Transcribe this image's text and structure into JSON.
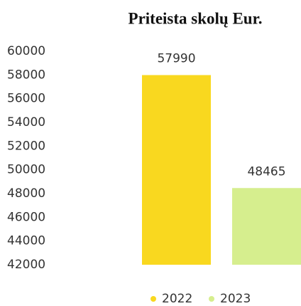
{
  "chart_data": {
    "type": "bar",
    "title": "Priteista skolų Eur.",
    "categories": [
      null
    ],
    "series": [
      {
        "name": "2022",
        "color": "#f9d81f",
        "values": [
          57990
        ]
      },
      {
        "name": "2023",
        "color": "#d6ee8e",
        "values": [
          48465
        ]
      }
    ],
    "ylim": [
      42000,
      60000
    ],
    "yticks": [
      42000,
      44000,
      46000,
      48000,
      50000,
      52000,
      54000,
      56000,
      58000,
      60000
    ],
    "grid": false,
    "legend": "bottom"
  }
}
